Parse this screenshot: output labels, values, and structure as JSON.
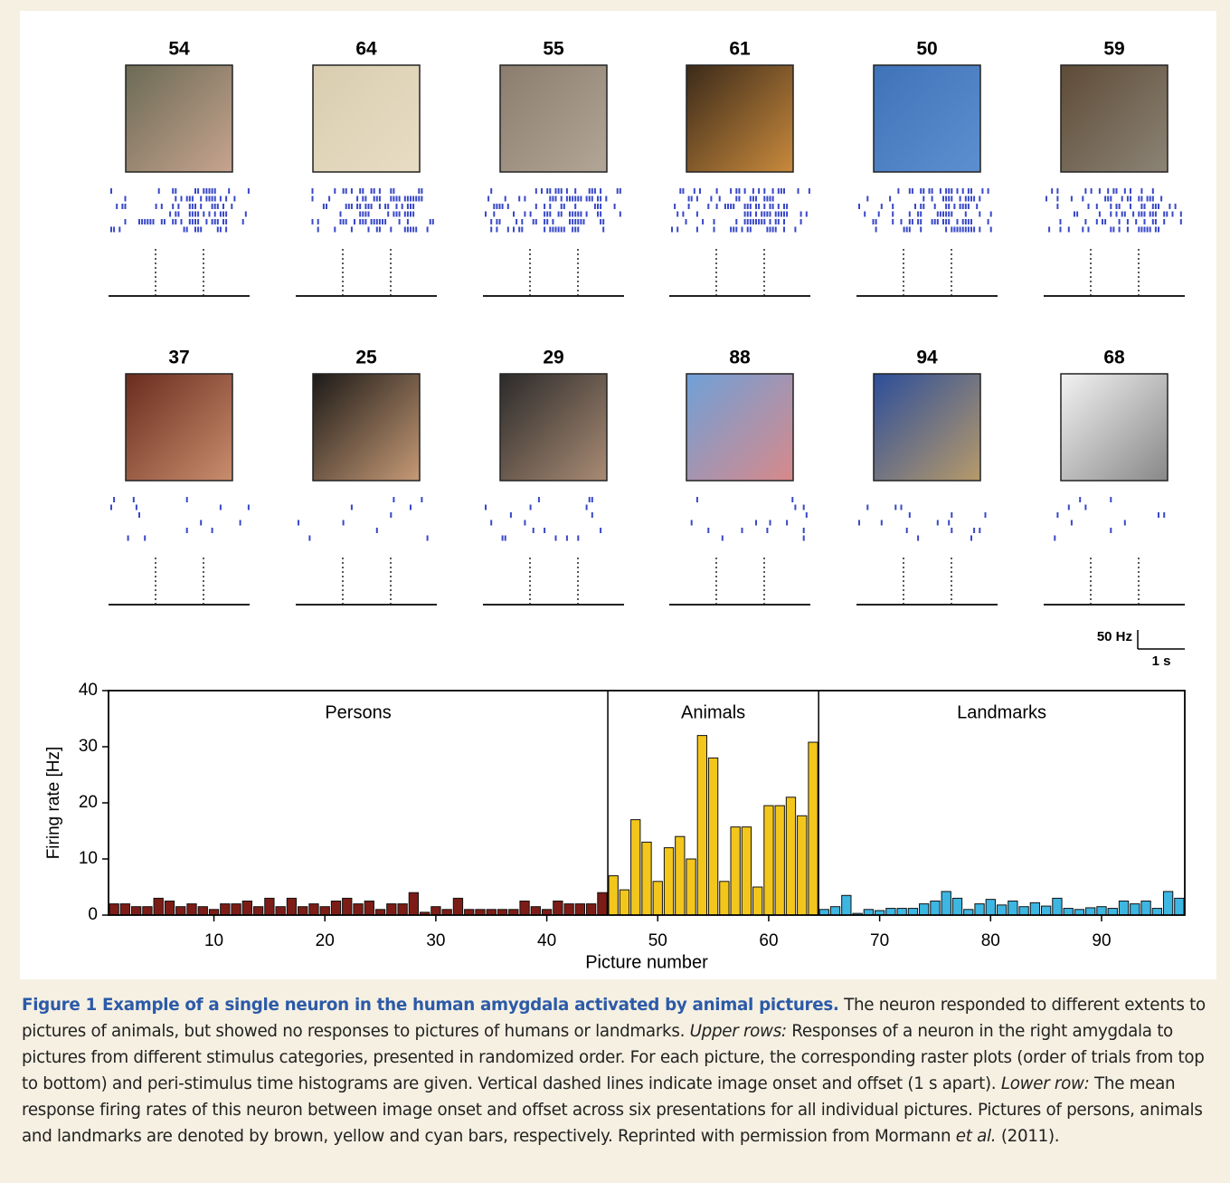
{
  "panels": [
    {
      "number": 54
    },
    {
      "number": 64
    },
    {
      "number": 55
    },
    {
      "number": 61
    },
    {
      "number": 50
    },
    {
      "number": 59
    },
    {
      "number": 37
    },
    {
      "number": 25
    },
    {
      "number": 29
    },
    {
      "number": 88
    },
    {
      "number": 94
    },
    {
      "number": 68
    }
  ],
  "scale_bar": {
    "y_label": "50 Hz",
    "x_label": "1 s"
  },
  "chart_data": {
    "type": "bar",
    "xlabel": "Picture number",
    "ylabel": "Firing rate [Hz]",
    "xlim": [
      0.5,
      97.5
    ],
    "ylim": [
      0,
      40
    ],
    "xticks": [
      10,
      20,
      30,
      40,
      50,
      60,
      70,
      80,
      90
    ],
    "yticks": [
      0,
      10,
      20,
      30,
      40
    ],
    "series": [
      {
        "name": "Persons",
        "color": "#7d1c16",
        "x": [
          1,
          2,
          3,
          4,
          5,
          6,
          7,
          8,
          9,
          10,
          11,
          12,
          13,
          14,
          15,
          16,
          17,
          18,
          19,
          20,
          21,
          22,
          23,
          24,
          25,
          26,
          27,
          28,
          29,
          30,
          31,
          32,
          33,
          34,
          35,
          36,
          37,
          38,
          39,
          40,
          41,
          42,
          43,
          44,
          45
        ],
        "values": [
          2,
          2,
          1.5,
          1.5,
          3,
          2.5,
          1.5,
          2,
          1.5,
          1,
          2,
          2,
          2.5,
          1.5,
          3,
          1.5,
          3,
          1.5,
          2,
          1.5,
          2.5,
          3,
          2,
          2.5,
          1,
          2,
          2,
          4,
          0.5,
          1.5,
          1,
          3,
          1,
          1,
          1,
          1,
          1,
          2.5,
          1.5,
          1,
          2.5,
          2,
          2,
          2,
          4
        ]
      },
      {
        "name": "Animals",
        "color": "#f3c61c",
        "x": [
          46,
          47,
          48,
          49,
          50,
          51,
          52,
          53,
          54,
          55,
          56,
          57,
          58,
          59,
          60,
          61,
          62,
          63,
          64
        ],
        "values": [
          7,
          4.5,
          17,
          13,
          6,
          12,
          14,
          10,
          32,
          28,
          6,
          15.7,
          15.7,
          5,
          19.5,
          19.5,
          21,
          17.7,
          30.8
        ]
      },
      {
        "name": "Landmarks",
        "color": "#3db6e2",
        "x": [
          65,
          66,
          67,
          68,
          69,
          70,
          71,
          72,
          73,
          74,
          75,
          76,
          77,
          78,
          79,
          80,
          81,
          82,
          83,
          84,
          85,
          86,
          87,
          88,
          89,
          90,
          91,
          92,
          93,
          94,
          95,
          96,
          97
        ],
        "values": [
          1,
          1.5,
          3.5,
          0.3,
          1,
          0.8,
          1.2,
          1.2,
          1.2,
          2,
          2.5,
          4.2,
          3,
          1,
          2,
          2.8,
          1.8,
          2.5,
          1.5,
          2.2,
          1.6,
          3,
          1.2,
          1,
          1.3,
          1.5,
          1.2,
          2.5,
          2,
          2.5,
          1.2,
          4.2,
          3
        ]
      }
    ]
  },
  "caption": [
    {
      "text": "Figure 1  Example of a single neuron in the human amygdala activated by animal pictures.",
      "style": "label"
    },
    {
      "text": " The neuron responded to different extents to pictures of animals, but showed no responses to pictures of humans or landmarks. ",
      "style": "normal"
    },
    {
      "text": "Upper rows:",
      "style": "italic"
    },
    {
      "text": " Responses of a neuron in the right amygdala to pictures from different stimulus categories, presented in randomized order. For each picture, the corresponding raster plots (order of trials from top to bottom) and peri-stimulus time histograms are given. Vertical dashed lines indicate image onset and offset (1 s apart). ",
      "style": "normal"
    },
    {
      "text": "Lower row:",
      "style": "italic"
    },
    {
      "text": " The mean response firing rates of this neuron between image onset and offset across six presentations for all individual pictures. Pictures of persons, animals and landmarks are denoted by brown, yellow and cyan bars, respectively. Reprinted with permission from Mormann ",
      "style": "normal"
    },
    {
      "text": "et al.",
      "style": "italic"
    },
    {
      "text": " (2011).",
      "style": "normal"
    }
  ]
}
